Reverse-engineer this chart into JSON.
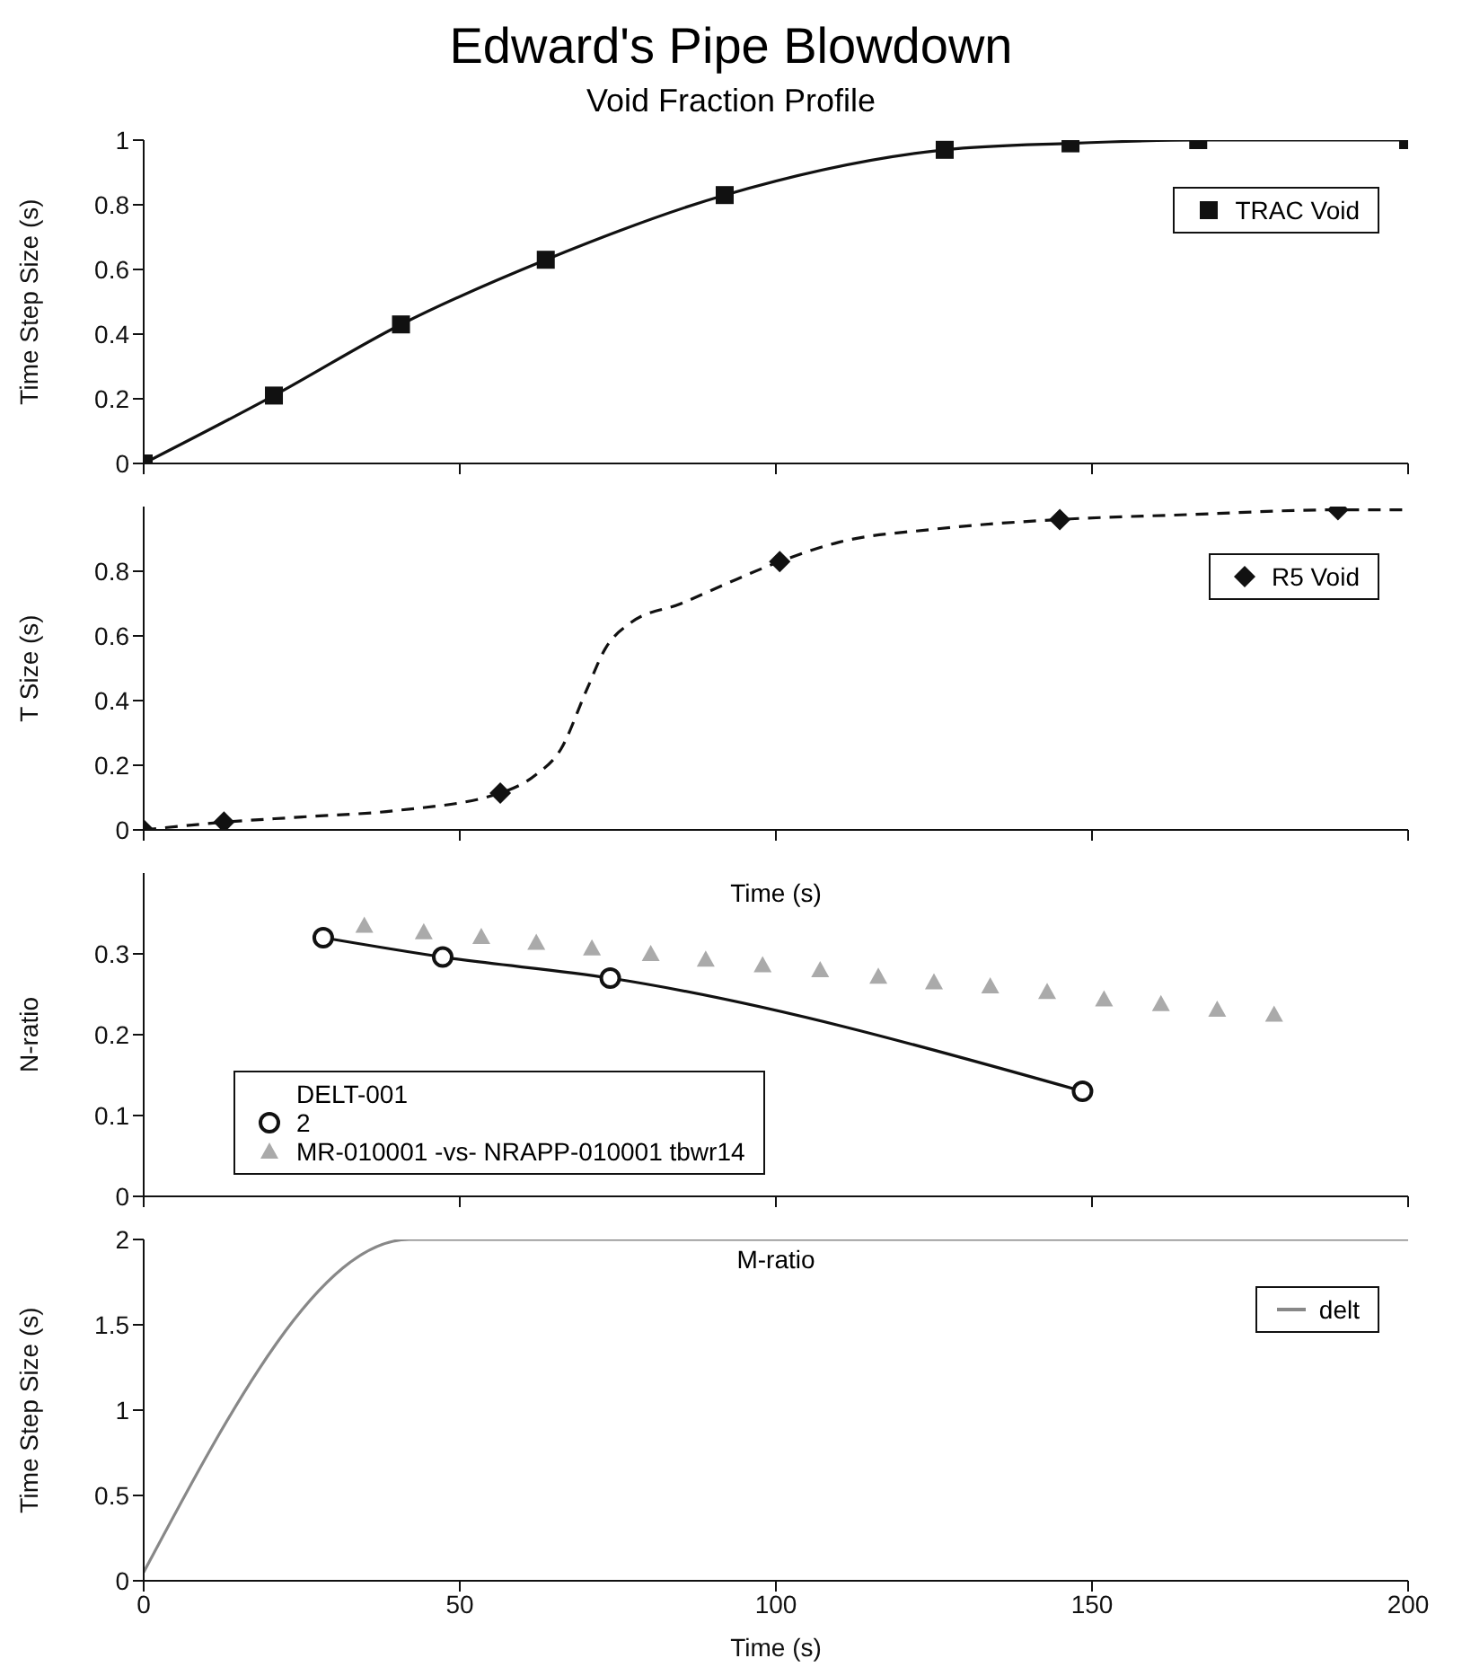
{
  "chart_data": [
    {
      "type": "line",
      "title": "Edward's Pipe Blowdown",
      "subtitle": "Void Fraction Profile",
      "ylabel": "Time Step Size (s)",
      "xlim": [
        0,
        200
      ],
      "xticks": [
        0,
        50,
        100,
        150,
        200
      ],
      "ylim": [
        0,
        1
      ],
      "yticks": [
        0,
        0.2,
        0.4,
        0.6,
        0.8,
        1
      ],
      "tick_labels": "y",
      "grid": false,
      "legend": "top right",
      "series": [
        {
          "name": "TRAC Void",
          "color": "#111111",
          "marker": "square",
          "line_style": "solid",
          "x": [
            0,
            20.6,
            40.7,
            63.6,
            91.9,
            126.7,
            146.6,
            166.8,
            200
          ],
          "values": [
            0,
            0.21,
            0.43,
            0.63,
            0.83,
            0.97,
            0.99,
            1,
            1
          ]
        }
      ]
    },
    {
      "type": "line",
      "ylabel": "T Size (s)",
      "xlim": [
        0,
        200
      ],
      "xticks": [
        0,
        50,
        100,
        150,
        200
      ],
      "ylim": [
        0,
        1
      ],
      "yticks": [
        0,
        0.2,
        0.4,
        0.6,
        0.8
      ],
      "tick_labels": "y",
      "grid": false,
      "legend": "top right",
      "series": [
        {
          "type": "line",
          "color": "#111111",
          "marker": "none",
          "line_style": "dashed",
          "x": [
            0,
            12.7,
            25,
            40,
            56.4,
            62,
            66,
            70,
            73,
            77,
            85,
            92,
            100.6,
            110,
            125,
            144.9,
            165,
            188.9,
            200
          ],
          "values": [
            0,
            0.024,
            0.04,
            0.06,
            0.114,
            0.17,
            0.25,
            0.43,
            0.56,
            0.64,
            0.7,
            0.76,
            0.83,
            0.89,
            0.93,
            0.96,
            0.975,
            0.99,
            0.99
          ]
        },
        {
          "type": "scatter",
          "name": "R5 Void",
          "color": "#111111",
          "marker": "diamond",
          "x": [
            0,
            12.7,
            56.4,
            100.6,
            144.9,
            188.9
          ],
          "values": [
            0,
            0.024,
            0.114,
            0.83,
            0.96,
            0.99
          ]
        }
      ]
    },
    {
      "type": "line",
      "title": "Time (s)",
      "ylabel": "N-ratio",
      "xlim": [
        0,
        200
      ],
      "xticks": [
        0,
        50,
        100,
        150,
        200
      ],
      "ylim": [
        0,
        0.4
      ],
      "yticks": [
        0,
        0.1,
        0.2,
        0.3
      ],
      "tick_labels": "y",
      "grid": false,
      "legend": "bottom left",
      "legend_title": "DELT-001",
      "series": [
        {
          "type": "line",
          "name": "2",
          "color": "#111111",
          "marker": "circle",
          "line_style": "solid",
          "x": [
            28.4,
            47.3,
            73.8,
            148.5
          ],
          "values": [
            0.32,
            0.296,
            0.27,
            0.13
          ]
        },
        {
          "type": "scatter",
          "name": "MR-010001 -vs- NRAPP-010001 tbwr14",
          "color": "#aaaaaa",
          "marker": "triangle",
          "x": [
            34.9,
            44.3,
            53.4,
            62.1,
            70.9,
            80.2,
            88.9,
            97.9,
            107,
            116.2,
            125,
            133.9,
            142.9,
            151.9,
            160.9,
            169.8,
            178.8
          ],
          "values": [
            0.335,
            0.327,
            0.321,
            0.314,
            0.307,
            0.3,
            0.293,
            0.286,
            0.28,
            0.272,
            0.265,
            0.26,
            0.253,
            0.244,
            0.238,
            0.231,
            0.225
          ]
        }
      ]
    },
    {
      "type": "line",
      "title": "M-ratio",
      "xlabel": "Time (s)",
      "ylabel": "Time Step Size (s)",
      "xlim": [
        0,
        200
      ],
      "xticks": [
        0,
        50,
        100,
        150,
        200
      ],
      "ylim": [
        0,
        2
      ],
      "yticks": [
        0,
        0.5,
        1,
        1.5,
        2
      ],
      "grid": false,
      "legend": "top right",
      "series": [
        {
          "name": "delt",
          "color": "#888888",
          "marker": "none",
          "line_style": "solid",
          "x": [
            0,
            42,
            200
          ],
          "values": [
            0.05,
            2,
            2
          ]
        }
      ]
    }
  ]
}
